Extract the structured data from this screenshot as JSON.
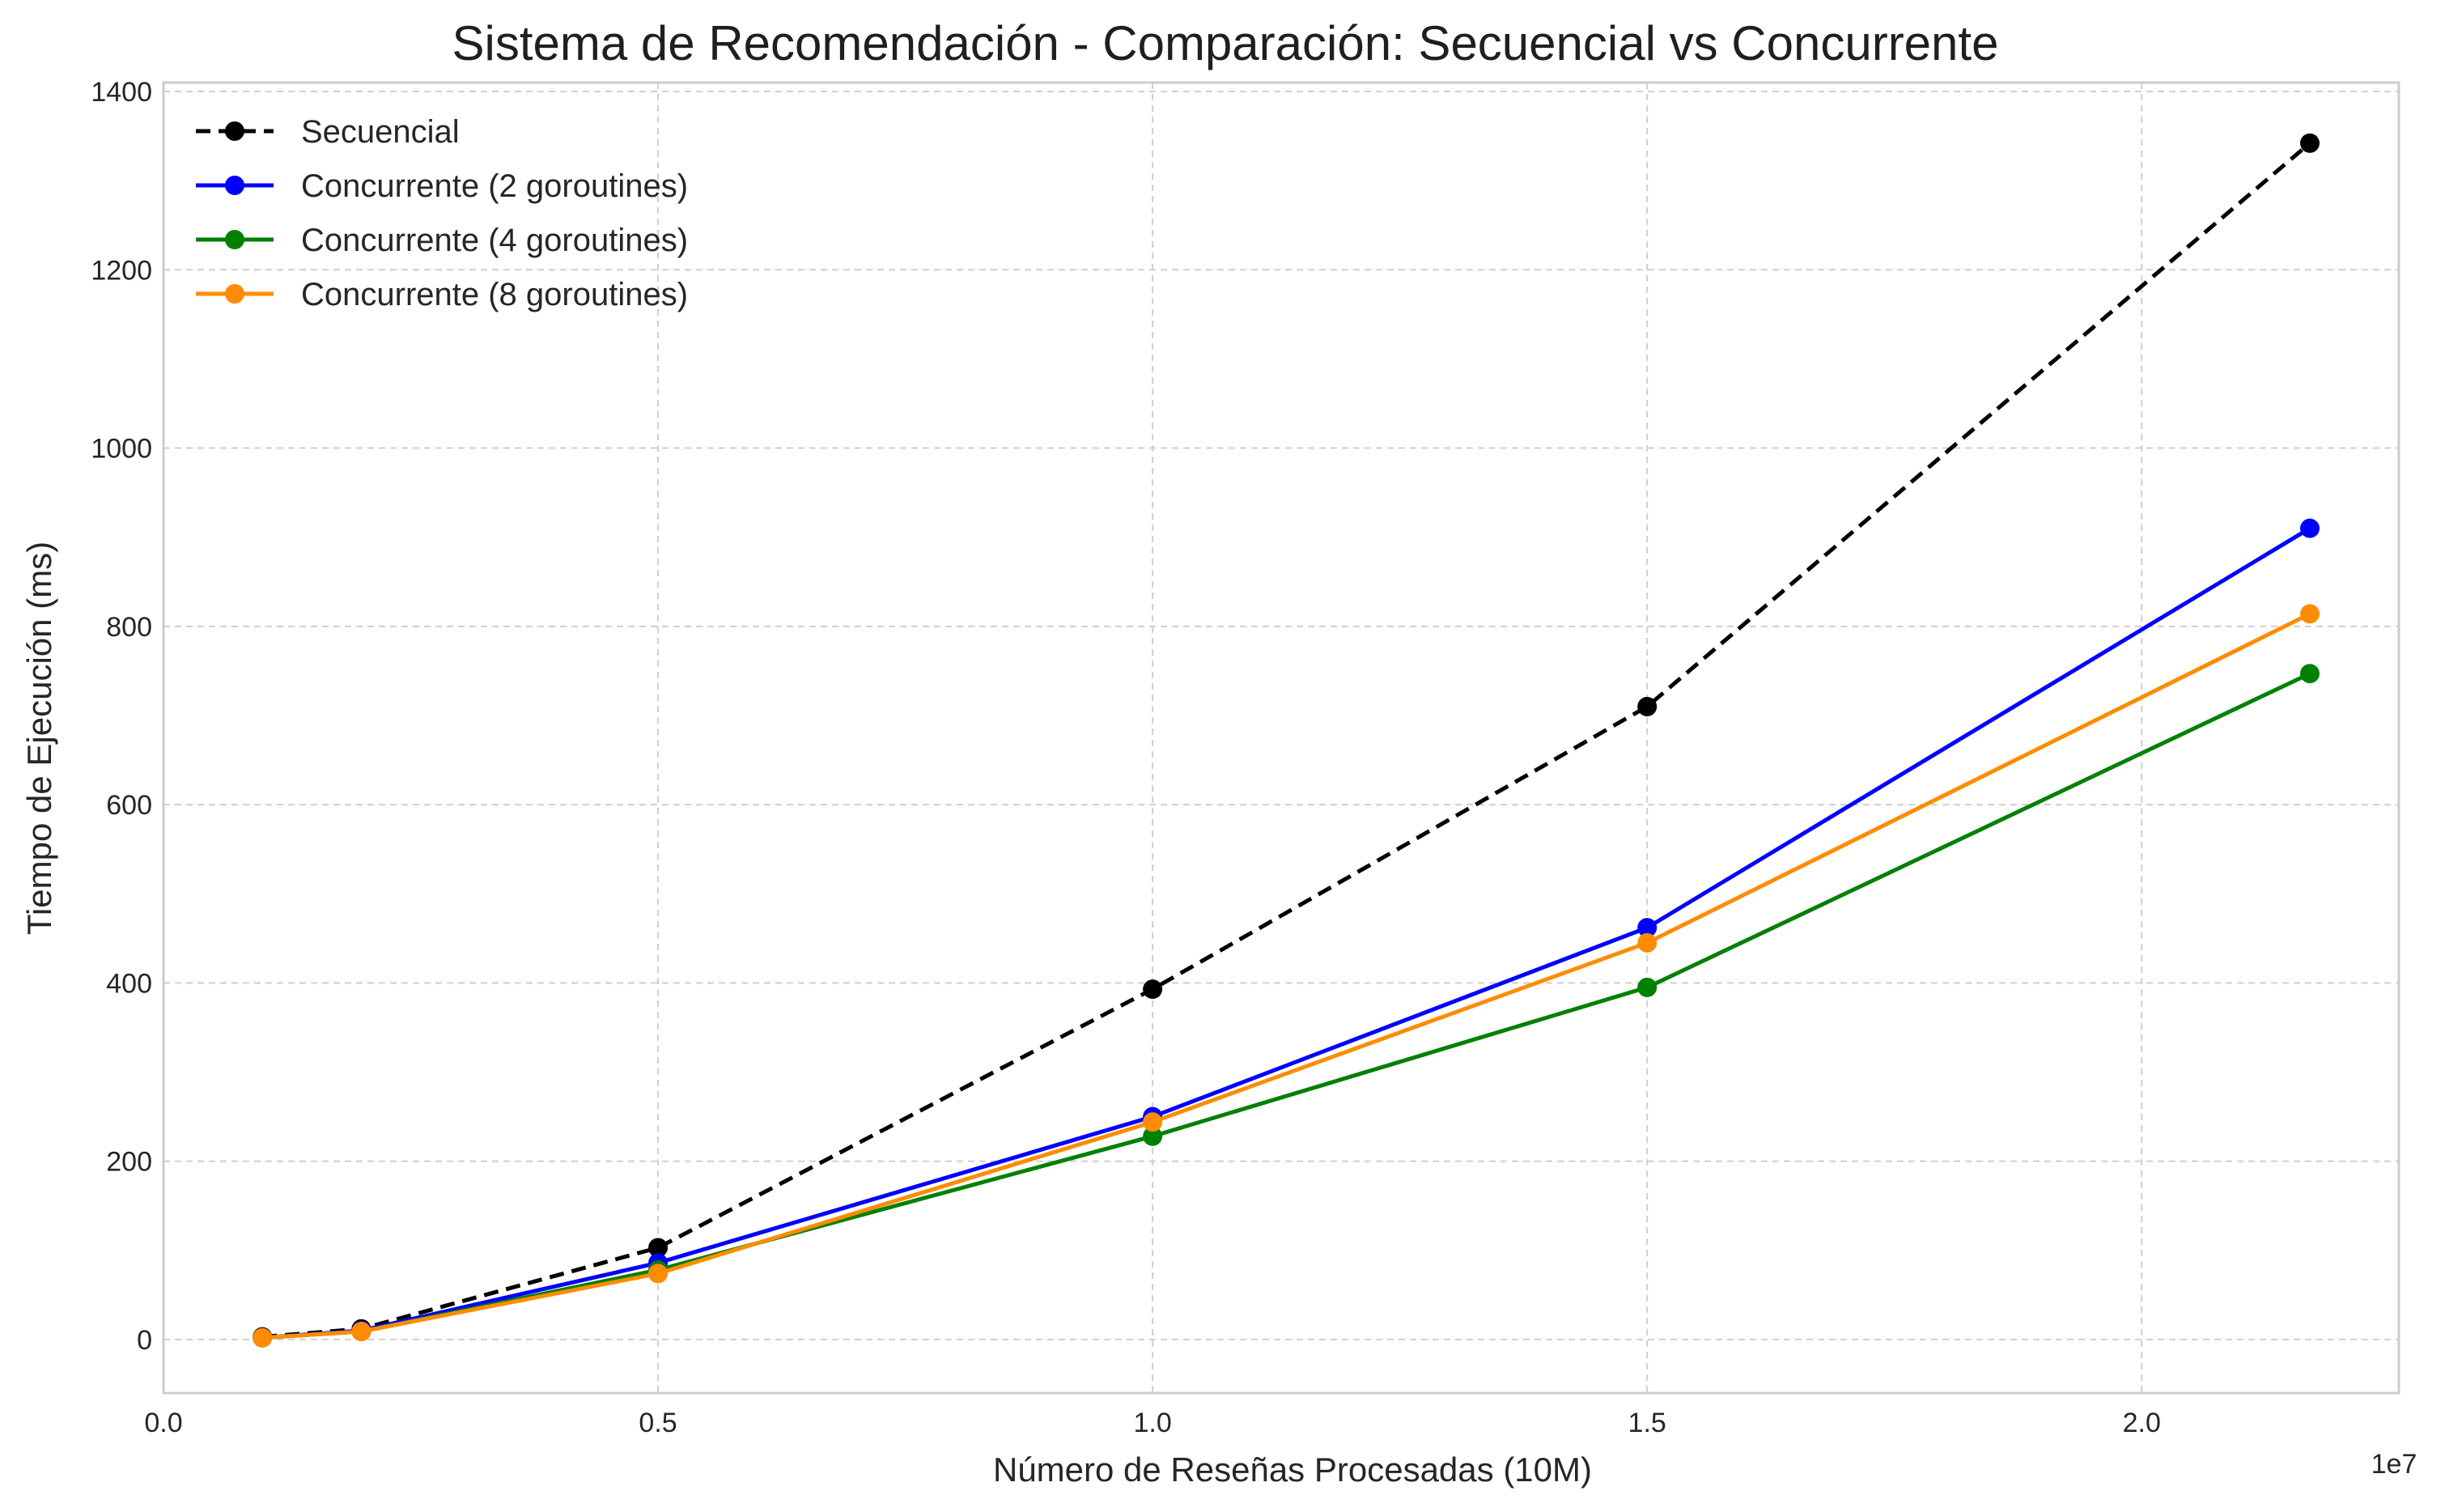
{
  "chart_data": {
    "type": "line",
    "title": "Sistema de Recomendación - Comparación: Secuencial vs Concurrente",
    "xlabel": "Número de Reseñas Procesadas (10M)",
    "ylabel": "Tiempo de Ejecución (ms)",
    "x_offset_label": "1e7",
    "xlim": [
      0,
      22600000
    ],
    "ylim": [
      -60,
      1410
    ],
    "x_ticks": [
      0,
      5000000,
      10000000,
      15000000,
      20000000
    ],
    "x_tick_labels": [
      "0.0",
      "0.5",
      "1.0",
      "1.5",
      "2.0"
    ],
    "y_ticks": [
      0,
      200,
      400,
      600,
      800,
      1000,
      1200,
      1400
    ],
    "y_tick_labels": [
      "0",
      "200",
      "400",
      "600",
      "800",
      "1000",
      "1200",
      "1400"
    ],
    "grid": true,
    "legend_position": "top-left",
    "x": [
      1000000,
      2000000,
      5000000,
      10000000,
      15000000,
      21700000
    ],
    "series": [
      {
        "name": "Secuencial",
        "color": "#000000",
        "dashed": true,
        "values": [
          3,
          12,
          103,
          393,
          710,
          1342
        ]
      },
      {
        "name": "Concurrente (2 goroutines)",
        "color": "#0000ff",
        "dashed": false,
        "values": [
          2,
          10,
          86,
          250,
          462,
          910
        ]
      },
      {
        "name": "Concurrente (4 goroutines)",
        "color": "#008000",
        "dashed": false,
        "values": [
          2,
          9,
          78,
          228,
          395,
          747
        ]
      },
      {
        "name": "Concurrente (8 goroutines)",
        "color": "#ff8c00",
        "dashed": false,
        "values": [
          2,
          9,
          74,
          244,
          445,
          814
        ]
      }
    ]
  }
}
